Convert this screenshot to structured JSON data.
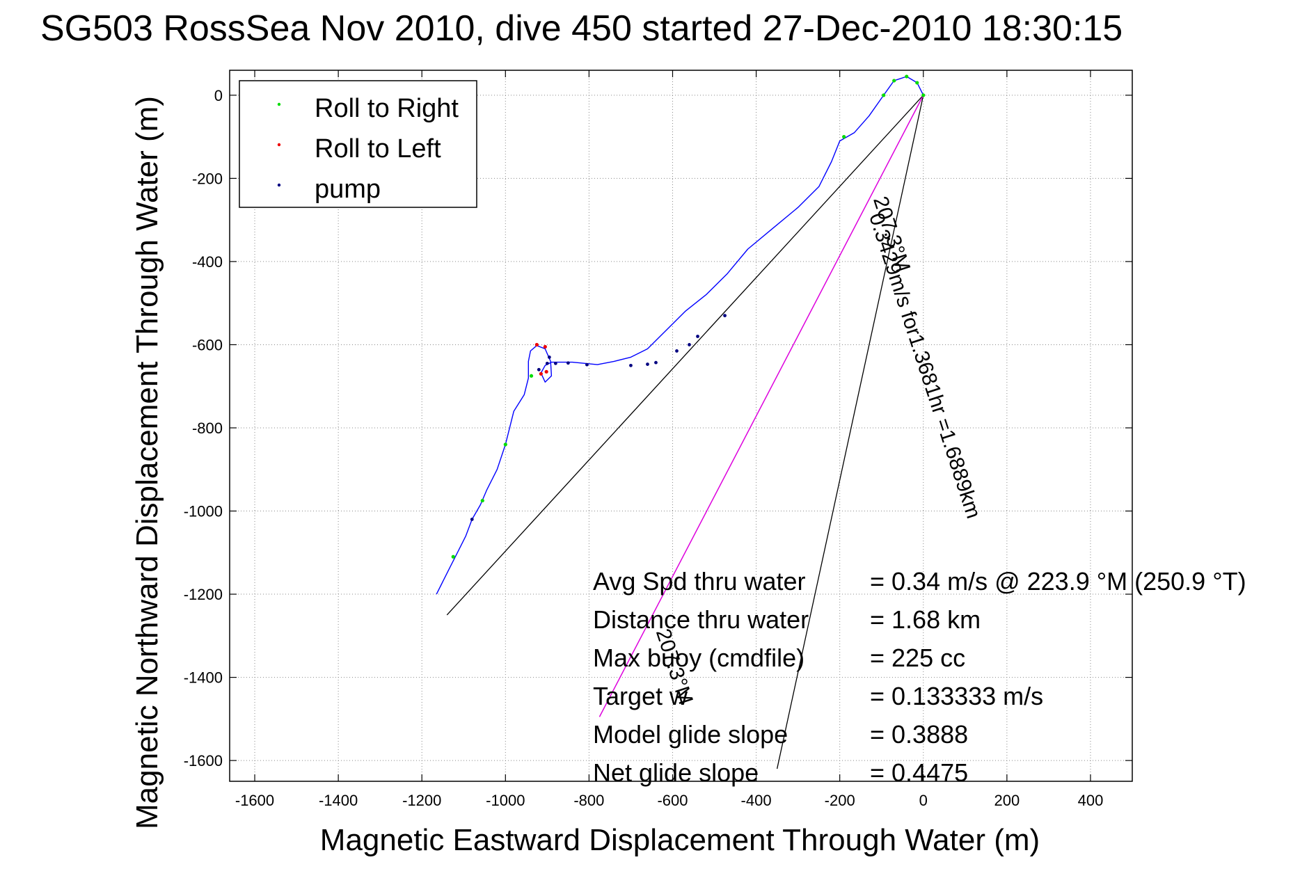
{
  "chart_data": {
    "type": "line",
    "title": "SG503 RossSea Nov 2010, dive 450 started 27-Dec-2010 18:30:15",
    "xlabel": "Magnetic Eastward Displacement Through Water (m)",
    "ylabel": "Magnetic Northward Displacement Through Water (m)",
    "xlim": [
      -1660,
      500
    ],
    "ylim": [
      -1650,
      60
    ],
    "xticks": [
      -1600,
      -1400,
      -1200,
      -1000,
      -800,
      -600,
      -400,
      -200,
      0,
      200,
      400
    ],
    "yticks": [
      0,
      -200,
      -400,
      -600,
      -800,
      -1000,
      -1200,
      -1400,
      -1600
    ],
    "grid": true,
    "legend_position": "top-left",
    "legend": [
      {
        "label": "Roll to Right",
        "color": "#00dd00"
      },
      {
        "label": "Roll to Left",
        "color": "#ee0000"
      },
      {
        "label": "pump",
        "color": "#000080"
      }
    ],
    "track_color": "#0000ff",
    "track": [
      [
        0,
        0
      ],
      [
        -15,
        30
      ],
      [
        -40,
        45
      ],
      [
        -70,
        35
      ],
      [
        -95,
        0
      ],
      [
        -130,
        -50
      ],
      [
        -165,
        -90
      ],
      [
        -200,
        -110
      ],
      [
        -220,
        -160
      ],
      [
        -250,
        -220
      ],
      [
        -300,
        -270
      ],
      [
        -360,
        -320
      ],
      [
        -420,
        -370
      ],
      [
        -470,
        -430
      ],
      [
        -520,
        -480
      ],
      [
        -570,
        -520
      ],
      [
        -620,
        -570
      ],
      [
        -660,
        -610
      ],
      [
        -700,
        -630
      ],
      [
        -740,
        -640
      ],
      [
        -780,
        -648
      ],
      [
        -840,
        -642
      ],
      [
        -890,
        -642
      ],
      [
        -905,
        -650
      ],
      [
        -915,
        -668
      ],
      [
        -905,
        -690
      ],
      [
        -890,
        -675
      ],
      [
        -892,
        -640
      ],
      [
        -905,
        -610
      ],
      [
        -925,
        -602
      ],
      [
        -940,
        -615
      ],
      [
        -945,
        -640
      ],
      [
        -945,
        -680
      ],
      [
        -955,
        -720
      ],
      [
        -980,
        -760
      ],
      [
        -1000,
        -840
      ],
      [
        -1020,
        -900
      ],
      [
        -1045,
        -950
      ],
      [
        -1060,
        -985
      ],
      [
        -1080,
        -1020
      ],
      [
        -1095,
        -1060
      ],
      [
        -1115,
        -1100
      ],
      [
        -1130,
        -1130
      ],
      [
        -1150,
        -1170
      ],
      [
        -1165,
        -1200
      ]
    ],
    "roll_right": [
      [
        0,
        0
      ],
      [
        -15,
        30
      ],
      [
        -40,
        45
      ],
      [
        -70,
        35
      ],
      [
        -95,
        0
      ],
      [
        -190,
        -100
      ],
      [
        -938,
        -675
      ],
      [
        -1000,
        -840
      ],
      [
        -1055,
        -975
      ],
      [
        -1125,
        -1110
      ]
    ],
    "roll_left": [
      [
        -905,
        -605
      ],
      [
        -925,
        -600
      ],
      [
        -902,
        -665
      ],
      [
        -915,
        -670
      ]
    ],
    "pump": [
      [
        -1080,
        -1020
      ],
      [
        -900,
        -645
      ],
      [
        -880,
        -645
      ],
      [
        -850,
        -644
      ],
      [
        -805,
        -648
      ],
      [
        -700,
        -650
      ],
      [
        -660,
        -647
      ],
      [
        -640,
        -643
      ],
      [
        -590,
        -615
      ],
      [
        -560,
        -600
      ],
      [
        -540,
        -580
      ],
      [
        -475,
        -530
      ],
      [
        -920,
        -660
      ],
      [
        -895,
        -630
      ]
    ],
    "black_lines": [
      {
        "from": [
          0,
          0
        ],
        "to": [
          -1140,
          -1250
        ]
      },
      {
        "from": [
          0,
          0
        ],
        "to": [
          -350,
          -1620
        ]
      }
    ],
    "magenta_line": {
      "from": [
        0,
        0
      ],
      "to": [
        -775,
        -1495
      ],
      "color": "#dd00dd"
    },
    "rotated_labels": [
      {
        "text": "0.3429m/s for1.3681hr =1.6889km",
        "anchor": [
          -130,
          -290
        ],
        "angle": 72
      },
      {
        "text": "207.3°M",
        "anchor": [
          -120,
          -250
        ],
        "angle": 72
      },
      {
        "text": "207.3°M",
        "anchor": [
          -640,
          -1290
        ],
        "angle": 72
      }
    ],
    "stats": [
      {
        "label": "Avg Spd thru water",
        "value": "=  0.34 m/s @ 223.9 °M (250.9 °T)"
      },
      {
        "label": "Distance thru water",
        "value": "=  1.68 km"
      },
      {
        "label": "Max buoy (cmdfile)",
        "value": "= 225 cc"
      },
      {
        "label": "Target w",
        "value": "= 0.133333 m/s"
      },
      {
        "label": "Model glide slope",
        "value": "= 0.3888"
      },
      {
        "label": "Net glide slope",
        "value": "= 0.4475"
      }
    ]
  }
}
